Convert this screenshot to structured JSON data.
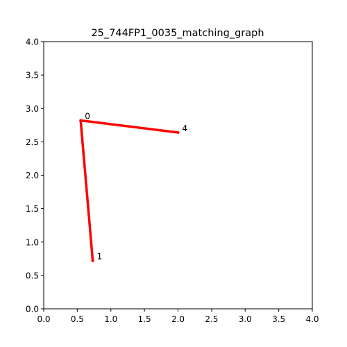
{
  "chart_data": {
    "type": "line",
    "title": "25_744FP1_0035_matching_graph",
    "xlabel": "",
    "ylabel": "",
    "xlim": [
      0,
      4
    ],
    "ylim": [
      0,
      4
    ],
    "grid": false,
    "x_ticks": [
      "0.0",
      "0.5",
      "1.0",
      "1.5",
      "2.0",
      "2.5",
      "3.0",
      "3.5",
      "4.0"
    ],
    "y_ticks": [
      "0.0",
      "0.5",
      "1.0",
      "1.5",
      "2.0",
      "2.5",
      "3.0",
      "3.5",
      "4.0"
    ],
    "nodes": [
      {
        "label": "0",
        "x": 0.55,
        "y": 2.82
      },
      {
        "label": "4",
        "x": 2.0,
        "y": 2.64
      },
      {
        "label": "1",
        "x": 0.73,
        "y": 0.72
      }
    ],
    "edges": [
      {
        "from": "0",
        "to": "4"
      },
      {
        "from": "0",
        "to": "1"
      }
    ],
    "edge_color": "#ff0000",
    "node_color": "#ff0000"
  }
}
